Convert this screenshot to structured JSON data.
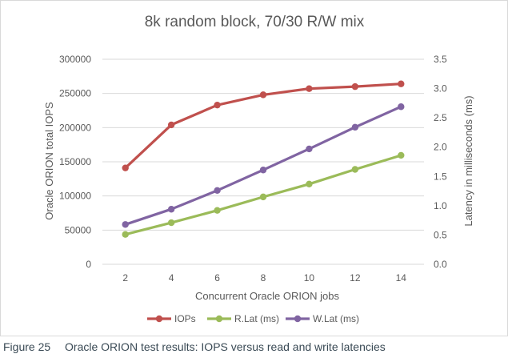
{
  "chart_data": {
    "type": "line",
    "title": "8k random block, 70/30 R/W mix",
    "xlabel": "Concurrent Oracle ORION jobs",
    "ylabel_left": "Oracle ORION total IOPS",
    "ylabel_right": "Latency in milliseconds (ms)",
    "x": [
      2,
      4,
      6,
      8,
      10,
      12,
      14
    ],
    "ylim_left": [
      0,
      300000
    ],
    "ylim_right": [
      0,
      3.5
    ],
    "yticks_left": [
      "0",
      "50000",
      "100000",
      "150000",
      "200000",
      "250000",
      "300000"
    ],
    "yticks_right": [
      "0.0",
      "0.5",
      "1.0",
      "1.5",
      "2.0",
      "2.5",
      "3.0",
      "3.5"
    ],
    "grid": true,
    "legend": "bottom",
    "series": [
      {
        "name": "IOPs",
        "axis": "left",
        "color": "#c0504d",
        "values": [
          141000,
          204000,
          233000,
          248000,
          257000,
          260000,
          264000
        ]
      },
      {
        "name": "R.Lat (ms)",
        "axis": "right",
        "color": "#9bbb59",
        "values": [
          0.51,
          0.71,
          0.92,
          1.15,
          1.37,
          1.62,
          1.86
        ]
      },
      {
        "name": "W.Lat (ms)",
        "axis": "right",
        "color": "#8064a2",
        "values": [
          0.68,
          0.94,
          1.26,
          1.61,
          1.97,
          2.34,
          2.69
        ]
      }
    ]
  },
  "caption": {
    "number": "Figure 25",
    "text": "Oracle ORION test results: IOPS versus read and write latencies"
  }
}
